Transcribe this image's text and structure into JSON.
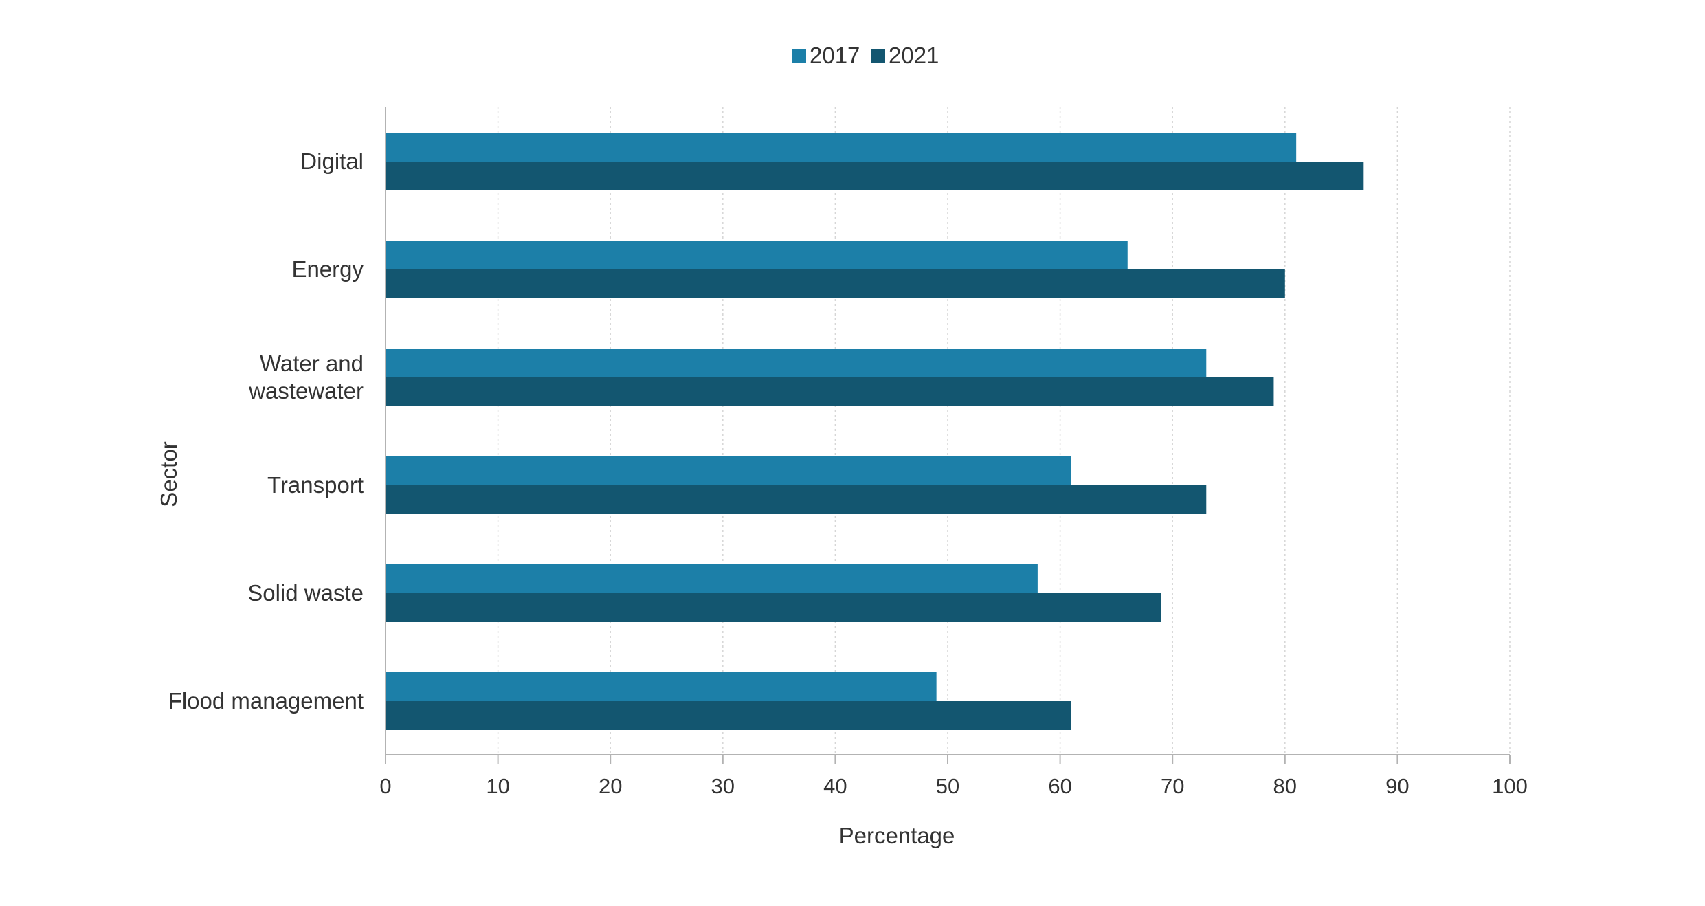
{
  "colors": {
    "series_2017": "#1c7fa8",
    "series_2021": "#135670",
    "grid": "#d6d6d6",
    "axis": "#b3b3b3",
    "text": "#333333"
  },
  "chart_data": {
    "type": "bar",
    "orientation": "horizontal",
    "title": "",
    "xlabel": "Percentage",
    "ylabel": "Sector",
    "xlim": [
      0,
      100
    ],
    "xticks": [
      0,
      10,
      20,
      30,
      40,
      50,
      60,
      70,
      80,
      90,
      100
    ],
    "grid": "vertical dashed",
    "legend_position": "top-center",
    "categories": [
      [
        "Digital"
      ],
      [
        "Energy"
      ],
      [
        "Water and",
        "wastewater"
      ],
      [
        "Transport"
      ],
      [
        "Solid waste"
      ],
      [
        "Flood management"
      ]
    ],
    "series": [
      {
        "name": "2017",
        "color": "#1c7fa8",
        "values": [
          81,
          66,
          73,
          61,
          58,
          49
        ]
      },
      {
        "name": "2021",
        "color": "#135670",
        "values": [
          87,
          80,
          79,
          73,
          69,
          61
        ]
      }
    ]
  }
}
